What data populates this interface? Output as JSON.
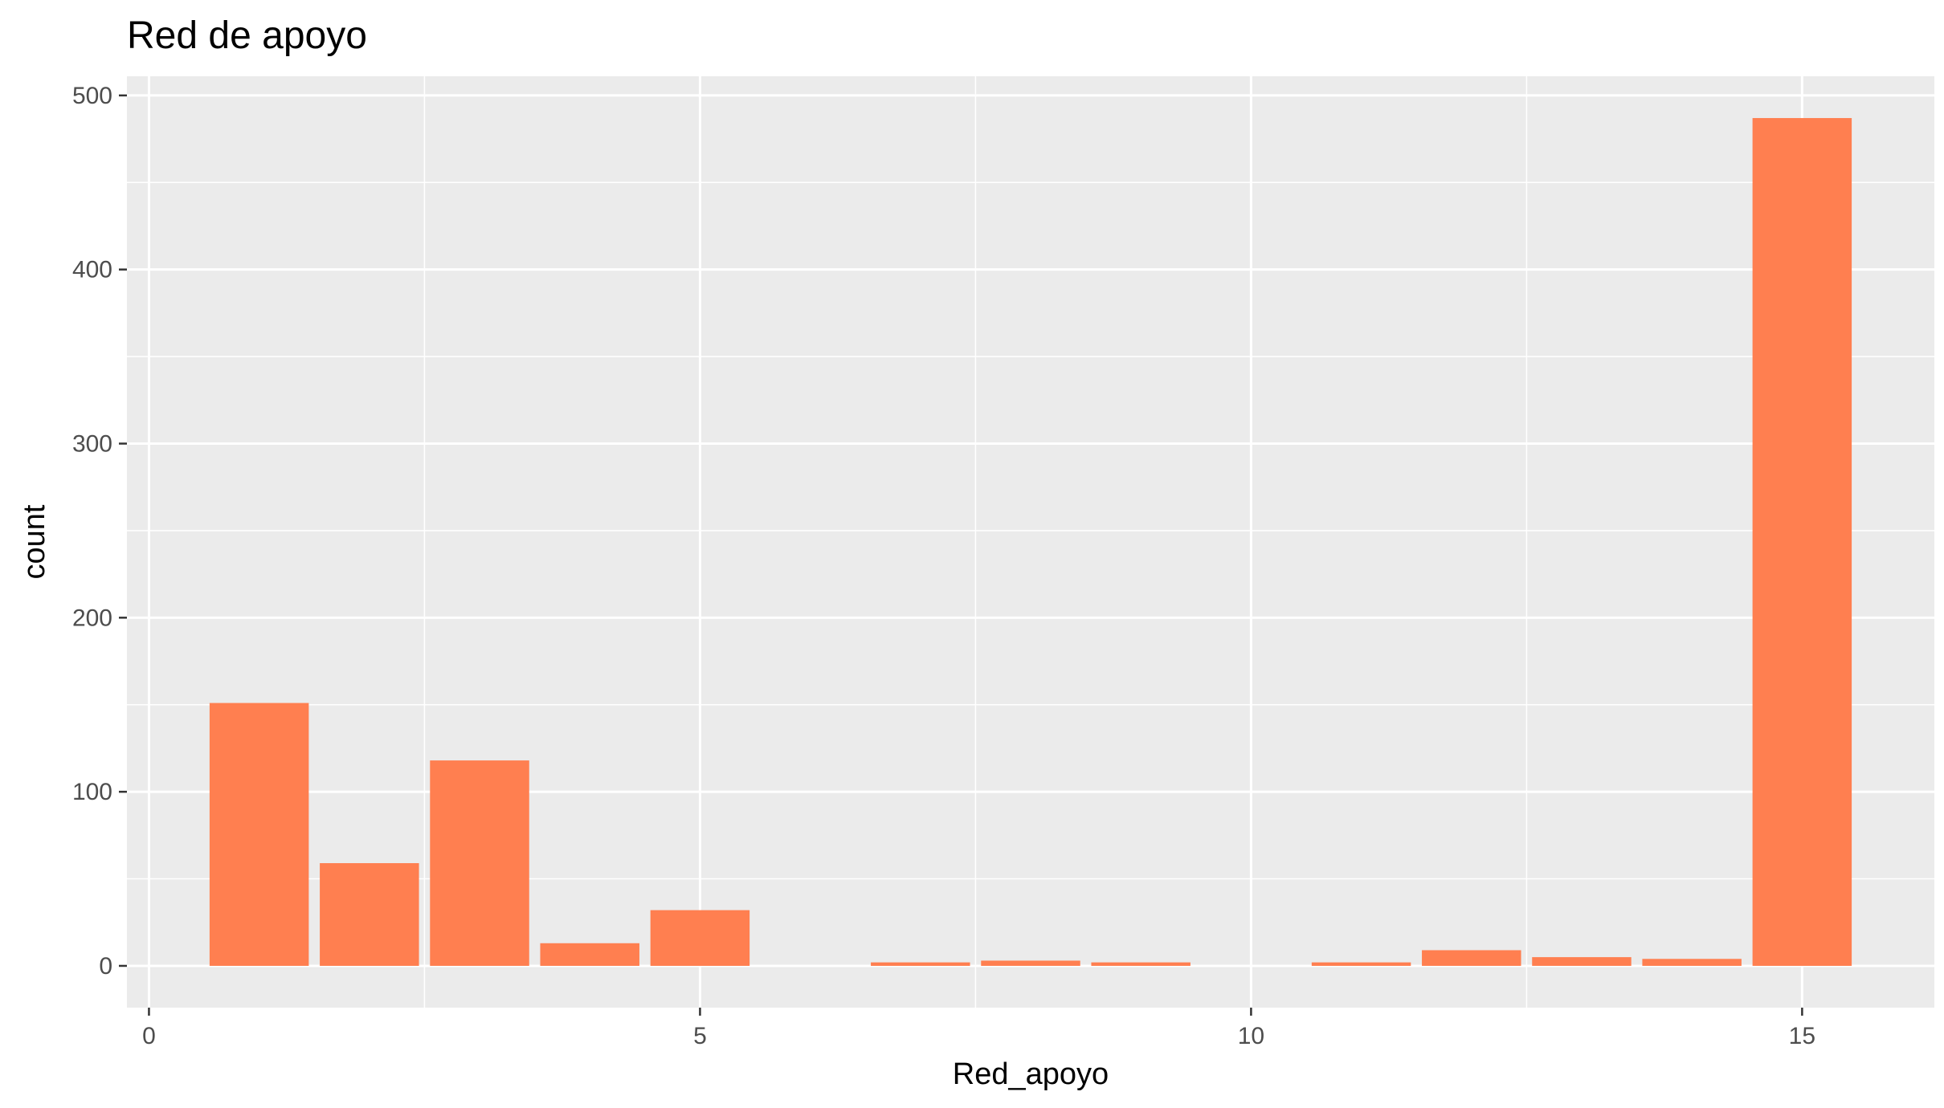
{
  "chart_data": {
    "type": "bar",
    "title": "Red de apoyo",
    "xlabel": "Red_apoyo",
    "ylabel": "count",
    "x": [
      1,
      2,
      3,
      4,
      5,
      7,
      8,
      9,
      11,
      12,
      13,
      14,
      15
    ],
    "values": [
      151,
      59,
      118,
      13,
      32,
      2,
      3,
      2,
      2,
      9,
      5,
      4,
      487
    ],
    "xlim": [
      -0.2,
      16.2
    ],
    "ylim": [
      -24,
      511
    ],
    "x_ticks": [
      0,
      5,
      10,
      15
    ],
    "y_ticks": [
      0,
      100,
      200,
      300,
      400,
      500
    ],
    "bar_color": "#FF7F50",
    "panel_color": "#EBEBEB",
    "grid_color": "#FFFFFF"
  }
}
